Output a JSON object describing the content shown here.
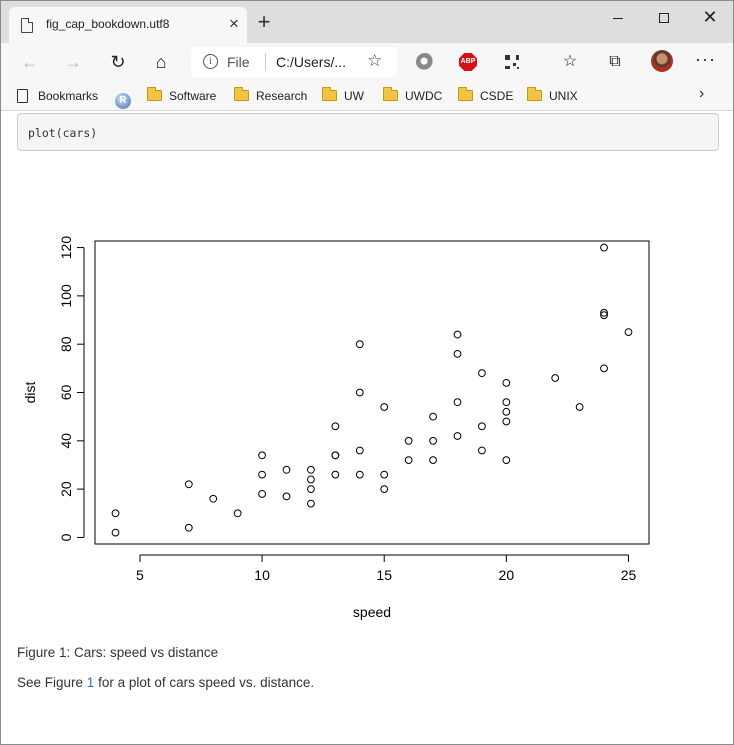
{
  "window": {
    "tab_title": "fig_cap_bookdown.utf8",
    "tab_close": "×",
    "new_tab": "+",
    "minimize": "",
    "maximize": "",
    "close": "✕"
  },
  "toolbar": {
    "back": "←",
    "forward": "→",
    "refresh": "↻",
    "home": "⌂",
    "info": "i",
    "scheme": "File",
    "url": "C:/Users/...",
    "star": "☆",
    "abp": "ABP",
    "favorites": "☆",
    "collections": "⧉",
    "more": "···"
  },
  "bookmarks": {
    "items": [
      {
        "label": "Bookmarks",
        "icon": "bookmarks-icon"
      },
      {
        "label": "R",
        "icon": "r-logo-icon"
      },
      {
        "label": "Software",
        "icon": "folder-icon"
      },
      {
        "label": "Research",
        "icon": "folder-icon"
      },
      {
        "label": "UW",
        "icon": "folder-icon"
      },
      {
        "label": "UWDC",
        "icon": "folder-icon"
      },
      {
        "label": "CSDE",
        "icon": "folder-icon"
      },
      {
        "label": "UNIX",
        "icon": "folder-icon"
      }
    ],
    "chevron": "›"
  },
  "page": {
    "code": "plot(cars)",
    "caption": "Figure 1: Cars: speed vs distance",
    "para_before": "See Figure ",
    "para_ref": "1",
    "para_after": " for a plot of cars speed vs. distance."
  },
  "chart_data": {
    "type": "scatter",
    "title": "",
    "xlabel": "speed",
    "ylabel": "dist",
    "xlim": [
      3.16,
      25.84
    ],
    "ylim": [
      -2.72,
      122.72
    ],
    "xticks": [
      5,
      10,
      15,
      20,
      25
    ],
    "yticks": [
      0,
      20,
      40,
      60,
      80,
      100,
      120
    ],
    "grid": false,
    "marker": "open-circle",
    "points": [
      [
        4,
        2
      ],
      [
        4,
        10
      ],
      [
        7,
        4
      ],
      [
        7,
        22
      ],
      [
        8,
        16
      ],
      [
        9,
        10
      ],
      [
        10,
        18
      ],
      [
        10,
        26
      ],
      [
        10,
        34
      ],
      [
        11,
        17
      ],
      [
        11,
        28
      ],
      [
        12,
        14
      ],
      [
        12,
        20
      ],
      [
        12,
        24
      ],
      [
        12,
        28
      ],
      [
        13,
        26
      ],
      [
        13,
        34
      ],
      [
        13,
        34
      ],
      [
        13,
        46
      ],
      [
        14,
        26
      ],
      [
        14,
        36
      ],
      [
        14,
        60
      ],
      [
        14,
        80
      ],
      [
        15,
        20
      ],
      [
        15,
        26
      ],
      [
        15,
        54
      ],
      [
        16,
        32
      ],
      [
        16,
        40
      ],
      [
        17,
        32
      ],
      [
        17,
        40
      ],
      [
        17,
        50
      ],
      [
        18,
        42
      ],
      [
        18,
        56
      ],
      [
        18,
        76
      ],
      [
        18,
        84
      ],
      [
        19,
        36
      ],
      [
        19,
        46
      ],
      [
        19,
        68
      ],
      [
        20,
        32
      ],
      [
        20,
        48
      ],
      [
        20,
        52
      ],
      [
        20,
        56
      ],
      [
        20,
        64
      ],
      [
        22,
        66
      ],
      [
        23,
        54
      ],
      [
        24,
        70
      ],
      [
        24,
        92
      ],
      [
        24,
        93
      ],
      [
        24,
        120
      ],
      [
        25,
        85
      ]
    ]
  }
}
